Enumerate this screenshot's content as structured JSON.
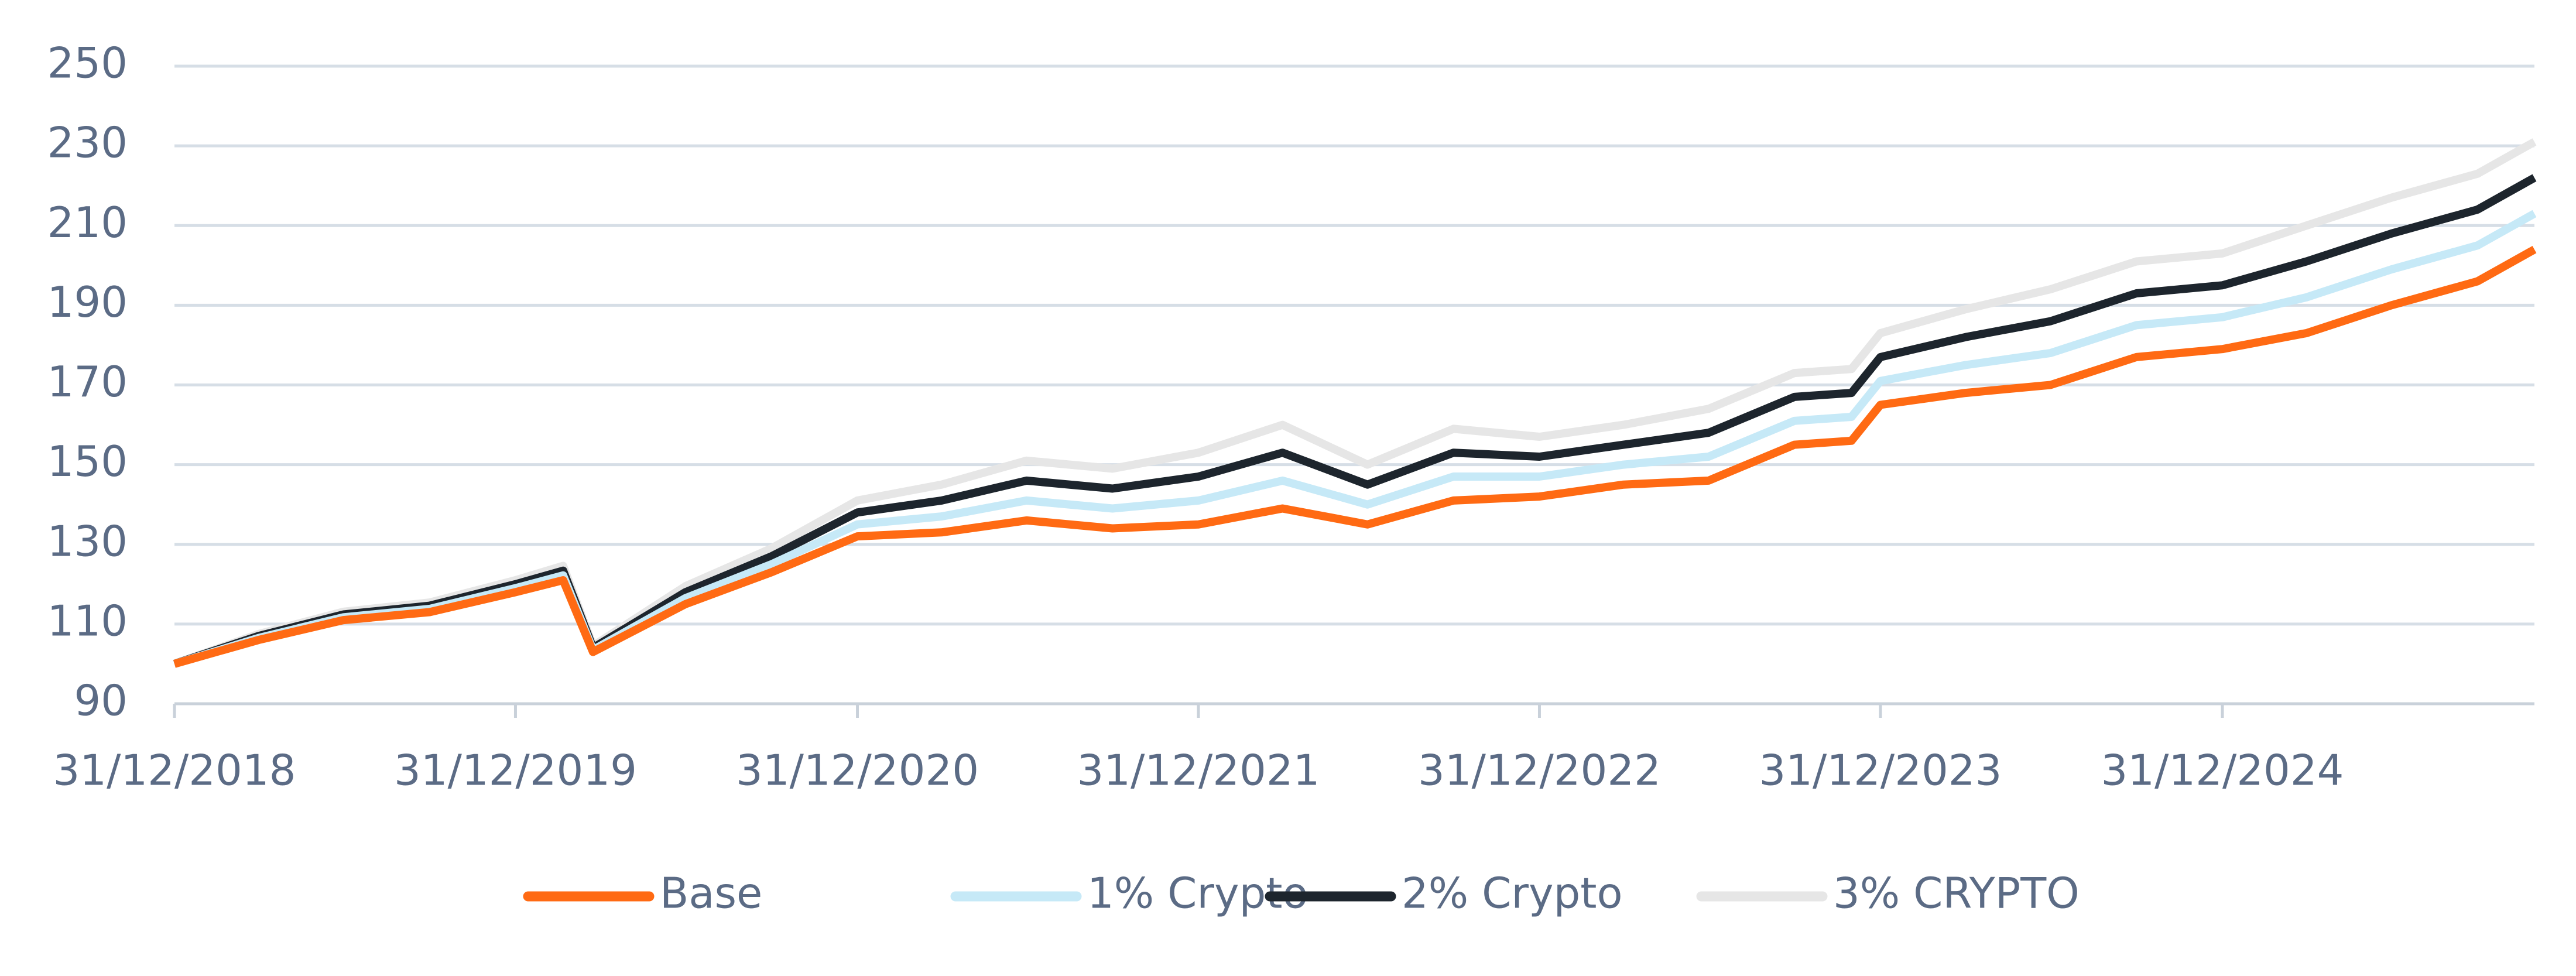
{
  "chart_data": {
    "type": "line",
    "x": [
      "31/12/2018",
      "31/03/2019",
      "30/06/2019",
      "30/09/2019",
      "31/12/2019",
      "20/02/2020",
      "23/03/2020",
      "30/06/2020",
      "30/09/2020",
      "31/12/2020",
      "31/03/2021",
      "30/06/2021",
      "30/09/2021",
      "31/12/2021",
      "31/03/2022",
      "30/06/2022",
      "30/09/2022",
      "31/12/2022",
      "31/03/2023",
      "30/06/2023",
      "30/09/2023",
      "30/11/2023",
      "31/12/2023",
      "31/03/2024",
      "30/06/2024",
      "30/09/2024",
      "31/12/2024",
      "31/03/2025",
      "30/06/2025",
      "30/09/2025",
      "30/11/2025"
    ],
    "series": [
      {
        "name": "Base",
        "color": "#ff6a13",
        "values": [
          100,
          106,
          111,
          113,
          118,
          121,
          103,
          115,
          123,
          132,
          133,
          136,
          134,
          135,
          139,
          135,
          141,
          142,
          145,
          146,
          155,
          156,
          165,
          168,
          170,
          177,
          179,
          183,
          190,
          196,
          204
        ]
      },
      {
        "name": "1% Crypto",
        "color": "#c6e9f7",
        "values": [
          100,
          106.5,
          111.7,
          113.8,
          119,
          122.2,
          103.5,
          116.5,
          125,
          135,
          137,
          141,
          139,
          141,
          146,
          140,
          147,
          147,
          150,
          152,
          161,
          162,
          171,
          175,
          178,
          185,
          187,
          192,
          199,
          205,
          213
        ]
      },
      {
        "name": "2% Crypto",
        "color": "#1d252d",
        "values": [
          100,
          107,
          112.4,
          114.6,
          120,
          123.4,
          104,
          118,
          127,
          138,
          141,
          146,
          144,
          147,
          153,
          145,
          153,
          152,
          155,
          158,
          167,
          168,
          177,
          182,
          186,
          193,
          195,
          201,
          208,
          214,
          222
        ]
      },
      {
        "name": "3% CRYPTO",
        "color": "#e6e6e6",
        "values": [
          100,
          107.5,
          113.1,
          115.4,
          121,
          124.6,
          104.5,
          119.5,
          129,
          141,
          145,
          151,
          149,
          153,
          160,
          150,
          159,
          157,
          160,
          164,
          173,
          174,
          183,
          189,
          194,
          201,
          203,
          210,
          217,
          223,
          231
        ]
      }
    ],
    "xlim": [
      "31/12/2018",
      "30/11/2025"
    ],
    "xticks": [
      "31/12/2018",
      "31/12/2019",
      "31/12/2020",
      "31/12/2021",
      "31/12/2022",
      "31/12/2023",
      "31/12/2024"
    ],
    "ylim": [
      90,
      250
    ],
    "yticks": [
      90,
      110,
      130,
      150,
      170,
      190,
      210,
      230,
      250
    ],
    "grid": true,
    "legend": "bottom"
  }
}
